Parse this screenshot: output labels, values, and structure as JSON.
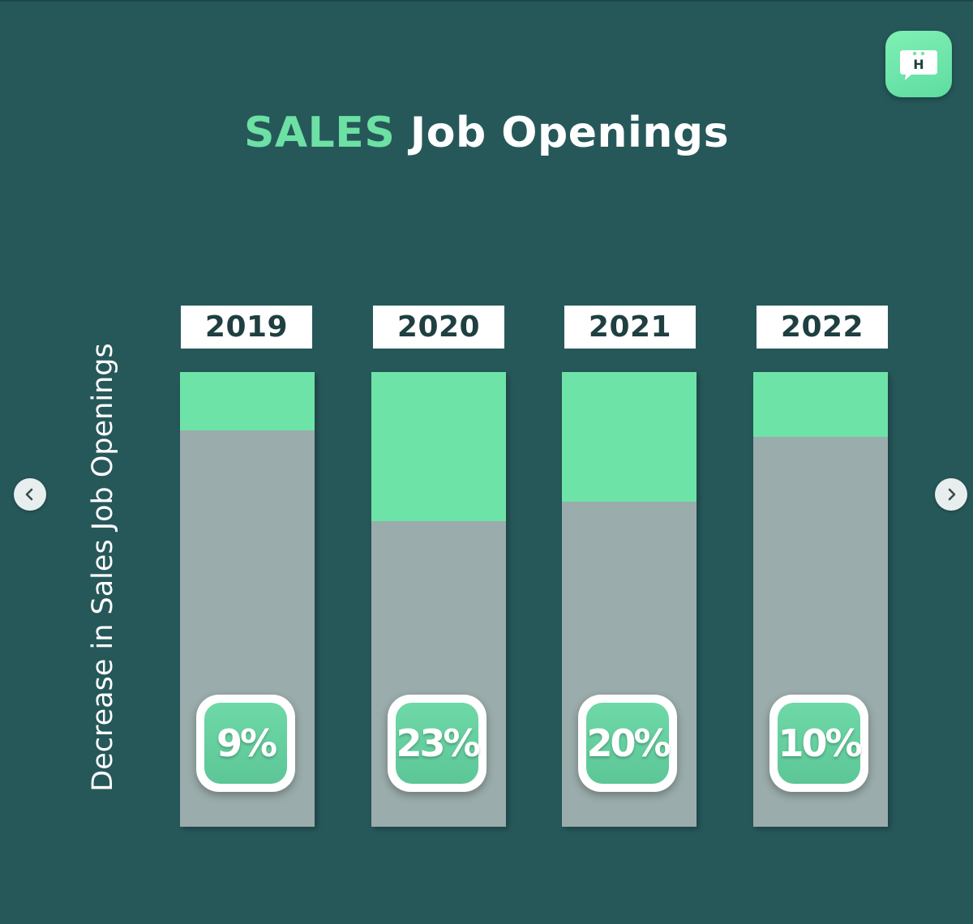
{
  "title": {
    "accent": "SALES",
    "rest": " Job Openings"
  },
  "logo": {
    "letter": "H",
    "icon": "chat-bubble-h-icon"
  },
  "navigation": {
    "prev_icon": "chevron-left-icon",
    "next_icon": "chevron-right-icon"
  },
  "colors": {
    "background": "#26585a",
    "accent": "#6de0a4",
    "bar_base": "#9aacab",
    "bar_fill": "#6de3a8"
  },
  "chart_data": {
    "type": "bar",
    "title": "SALES Job Openings",
    "ylabel": "Decrease in Sales Job Openings",
    "xlabel": "",
    "categories": [
      "2019",
      "2020",
      "2021",
      "2022"
    ],
    "values": [
      9,
      23,
      20,
      10
    ],
    "labels": [
      "9%",
      "23%",
      "20%",
      "10%"
    ],
    "ylim": [
      0,
      70
    ],
    "grid": false,
    "legend": "none"
  }
}
